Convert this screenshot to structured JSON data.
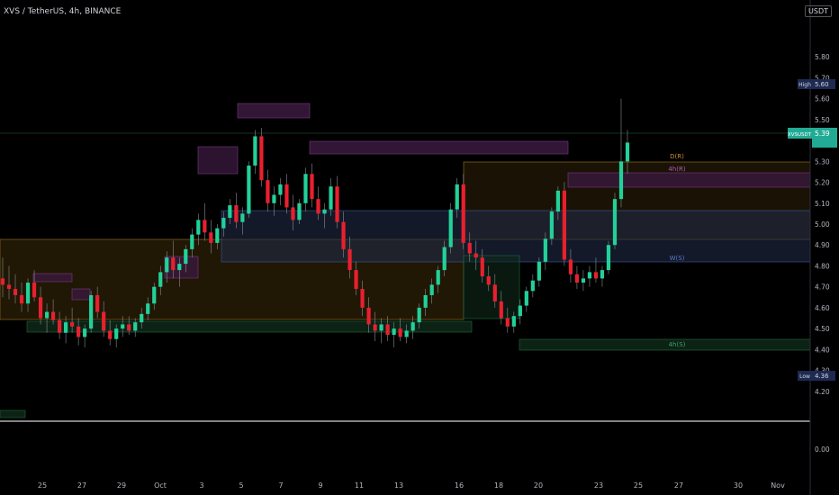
{
  "header": {
    "symbol_line": "XVS / TetherUS, 4h, BINANCE",
    "currency_button": "USDT"
  },
  "chart_data": {
    "type": "candlestick",
    "title": "XVS / TetherUS, 4h, BINANCE",
    "ylim": [
      4.1,
      5.9
    ],
    "y_ticks": [
      5.8,
      5.7,
      5.6,
      5.5,
      5.4,
      5.3,
      5.2,
      5.1,
      5.0,
      4.9,
      4.8,
      4.7,
      4.6,
      4.5,
      4.4,
      4.3,
      4.2
    ],
    "x_ticks": [
      "25",
      "27",
      "29",
      "Oct",
      "3",
      "5",
      "7",
      "9",
      "11",
      "13",
      "16",
      "18",
      "20",
      "23",
      "25",
      "27",
      "30",
      "Nov"
    ],
    "price_labels": {
      "high": {
        "label": "High",
        "value": "5.60"
      },
      "last": {
        "label": "XVSUSDT",
        "value": "5.39"
      },
      "low": {
        "label": "Low",
        "value": "4.36"
      }
    },
    "zone_labels": [
      "D(R)",
      "4h(R)",
      "W(S)",
      "4h(S)"
    ],
    "oscillator_pane": {
      "y_tick": "0.00"
    },
    "colors": {
      "up": "#089981",
      "down": "#f23645",
      "background": "#000000",
      "last_price": "#22ab94"
    },
    "candles": [
      [
        4.74,
        4.84,
        4.65,
        4.71
      ],
      [
        4.71,
        4.8,
        4.64,
        4.69
      ],
      [
        4.69,
        4.76,
        4.62,
        4.66
      ],
      [
        4.66,
        4.72,
        4.58,
        4.62
      ],
      [
        4.62,
        4.74,
        4.58,
        4.72
      ],
      [
        4.72,
        4.78,
        4.63,
        4.65
      ],
      [
        4.65,
        4.7,
        4.52,
        4.55
      ],
      [
        4.55,
        4.62,
        4.48,
        4.58
      ],
      [
        4.58,
        4.64,
        4.52,
        4.54
      ],
      [
        4.54,
        4.58,
        4.45,
        4.48
      ],
      [
        4.48,
        4.56,
        4.43,
        4.53
      ],
      [
        4.53,
        4.6,
        4.48,
        4.51
      ],
      [
        4.51,
        4.55,
        4.42,
        4.46
      ],
      [
        4.46,
        4.52,
        4.41,
        4.5
      ],
      [
        4.5,
        4.68,
        4.48,
        4.66
      ],
      [
        4.66,
        4.7,
        4.55,
        4.58
      ],
      [
        4.58,
        4.63,
        4.46,
        4.49
      ],
      [
        4.49,
        4.54,
        4.42,
        4.45
      ],
      [
        4.45,
        4.52,
        4.41,
        4.5
      ],
      [
        4.5,
        4.56,
        4.46,
        4.52
      ],
      [
        4.52,
        4.56,
        4.47,
        4.49
      ],
      [
        4.49,
        4.55,
        4.46,
        4.53
      ],
      [
        4.53,
        4.6,
        4.5,
        4.57
      ],
      [
        4.57,
        4.65,
        4.54,
        4.62
      ],
      [
        4.62,
        4.72,
        4.59,
        4.7
      ],
      [
        4.7,
        4.8,
        4.66,
        4.77
      ],
      [
        4.77,
        4.87,
        4.72,
        4.84
      ],
      [
        4.84,
        4.92,
        4.74,
        4.78
      ],
      [
        4.78,
        4.84,
        4.7,
        4.81
      ],
      [
        4.81,
        4.9,
        4.77,
        4.88
      ],
      [
        4.88,
        4.98,
        4.84,
        4.95
      ],
      [
        4.95,
        5.05,
        4.9,
        5.02
      ],
      [
        5.02,
        5.1,
        4.92,
        4.96
      ],
      [
        4.96,
        5.02,
        4.86,
        4.91
      ],
      [
        4.91,
        5.0,
        4.88,
        4.98
      ],
      [
        4.98,
        5.06,
        4.94,
        5.03
      ],
      [
        5.03,
        5.12,
        5.0,
        5.09
      ],
      [
        5.09,
        5.15,
        4.98,
        5.01
      ],
      [
        5.01,
        5.08,
        4.95,
        5.05
      ],
      [
        5.05,
        5.3,
        5.03,
        5.28
      ],
      [
        5.28,
        5.45,
        5.24,
        5.42
      ],
      [
        5.42,
        5.46,
        5.18,
        5.21
      ],
      [
        5.21,
        5.26,
        5.06,
        5.1
      ],
      [
        5.1,
        5.18,
        5.04,
        5.14
      ],
      [
        5.14,
        5.22,
        5.09,
        5.19
      ],
      [
        5.19,
        5.24,
        5.05,
        5.08
      ],
      [
        5.08,
        5.14,
        4.97,
        5.02
      ],
      [
        5.02,
        5.12,
        5.0,
        5.1
      ],
      [
        5.1,
        5.27,
        5.06,
        5.24
      ],
      [
        5.24,
        5.29,
        5.08,
        5.12
      ],
      [
        5.12,
        5.18,
        5.02,
        5.05
      ],
      [
        5.05,
        5.1,
        4.98,
        5.07
      ],
      [
        5.07,
        5.22,
        5.04,
        5.18
      ],
      [
        5.18,
        5.23,
        4.98,
        5.01
      ],
      [
        5.01,
        5.06,
        4.84,
        4.88
      ],
      [
        4.88,
        4.94,
        4.74,
        4.78
      ],
      [
        4.78,
        4.82,
        4.66,
        4.69
      ],
      [
        4.69,
        4.73,
        4.56,
        4.6
      ],
      [
        4.6,
        4.65,
        4.48,
        4.52
      ],
      [
        4.52,
        4.58,
        4.44,
        4.49
      ],
      [
        4.49,
        4.55,
        4.43,
        4.52
      ],
      [
        4.52,
        4.56,
        4.44,
        4.47
      ],
      [
        4.47,
        4.53,
        4.41,
        4.5
      ],
      [
        4.5,
        4.55,
        4.44,
        4.46
      ],
      [
        4.46,
        4.52,
        4.43,
        4.49
      ],
      [
        4.49,
        4.56,
        4.45,
        4.53
      ],
      [
        4.53,
        4.62,
        4.5,
        4.6
      ],
      [
        4.6,
        4.69,
        4.56,
        4.66
      ],
      [
        4.66,
        4.74,
        4.62,
        4.71
      ],
      [
        4.71,
        4.8,
        4.67,
        4.78
      ],
      [
        4.78,
        4.92,
        4.75,
        4.89
      ],
      [
        4.89,
        5.1,
        4.86,
        5.07
      ],
      [
        5.07,
        5.22,
        5.03,
        5.19
      ],
      [
        5.19,
        5.24,
        4.88,
        4.91
      ],
      [
        4.91,
        4.96,
        4.82,
        4.86
      ],
      [
        4.86,
        4.92,
        4.78,
        4.84
      ],
      [
        4.84,
        4.88,
        4.72,
        4.75
      ],
      [
        4.75,
        4.8,
        4.68,
        4.71
      ],
      [
        4.71,
        4.76,
        4.6,
        4.63
      ],
      [
        4.63,
        4.68,
        4.52,
        4.55
      ],
      [
        4.55,
        4.6,
        4.48,
        4.51
      ],
      [
        4.51,
        4.58,
        4.48,
        4.56
      ],
      [
        4.56,
        4.64,
        4.52,
        4.61
      ],
      [
        4.61,
        4.7,
        4.58,
        4.68
      ],
      [
        4.68,
        4.76,
        4.65,
        4.73
      ],
      [
        4.73,
        4.84,
        4.7,
        4.82
      ],
      [
        4.82,
        4.96,
        4.78,
        4.93
      ],
      [
        4.93,
        5.08,
        4.9,
        5.06
      ],
      [
        5.06,
        5.18,
        5.02,
        5.16
      ],
      [
        5.16,
        5.2,
        4.8,
        4.83
      ],
      [
        4.83,
        4.88,
        4.72,
        4.76
      ],
      [
        4.76,
        4.8,
        4.69,
        4.72
      ],
      [
        4.72,
        4.78,
        4.68,
        4.74
      ],
      [
        4.74,
        4.8,
        4.7,
        4.77
      ],
      [
        4.77,
        4.84,
        4.72,
        4.74
      ],
      [
        4.74,
        4.8,
        4.7,
        4.78
      ],
      [
        4.78,
        4.92,
        4.76,
        4.9
      ],
      [
        4.9,
        5.15,
        4.88,
        5.12
      ],
      [
        5.12,
        5.6,
        5.08,
        5.3
      ],
      [
        5.3,
        5.45,
        5.24,
        5.39
      ]
    ]
  }
}
